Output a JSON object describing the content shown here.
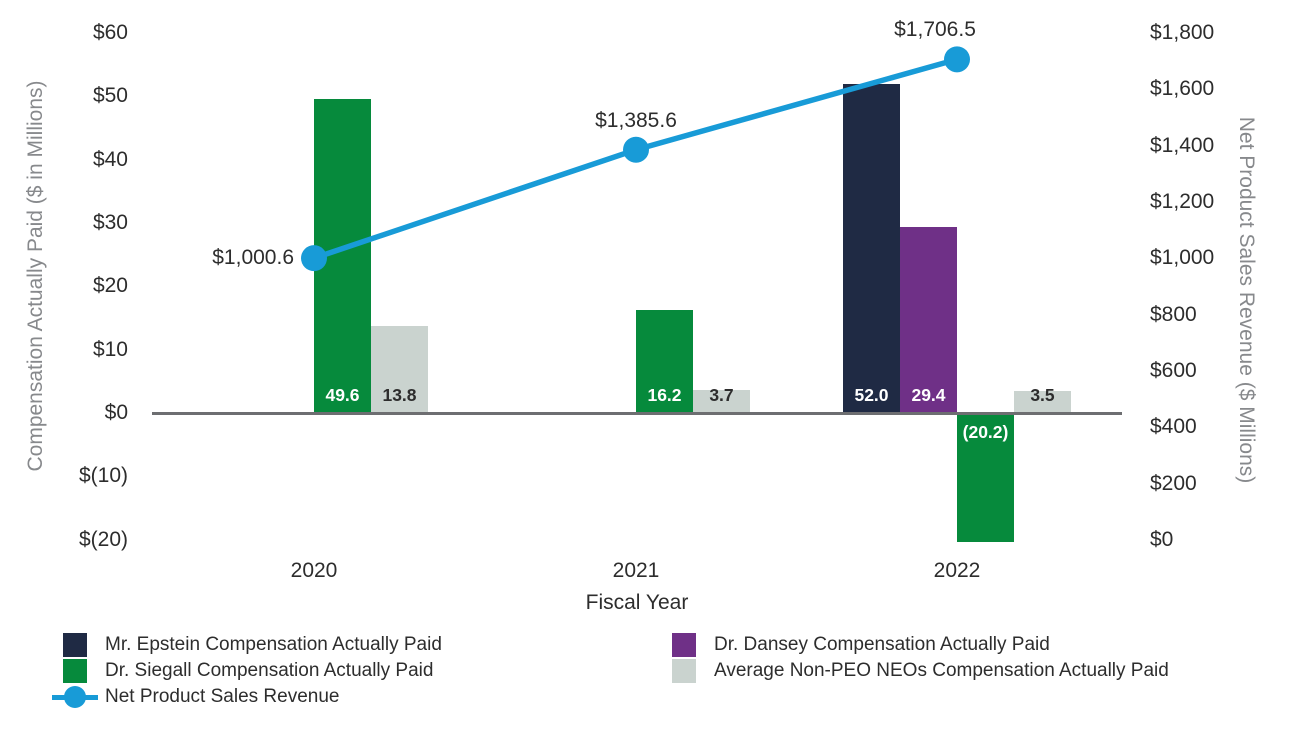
{
  "chart_data": {
    "type": "combo-bar-line",
    "background": "#ffffff",
    "grid": false,
    "categories": [
      "2020",
      "2021",
      "2022"
    ],
    "xlabel": "Fiscal Year",
    "left_axis": {
      "label": "Compensation Actually Paid ($ in Millions)",
      "tick_values": [
        60,
        50,
        40,
        30,
        20,
        10,
        0,
        -10,
        -20
      ],
      "tick_labels": [
        "$60",
        "$50",
        "$40",
        "$30",
        "$20",
        "$10",
        "$0",
        "$(10)",
        "$(20)"
      ],
      "range": [
        -20,
        60
      ]
    },
    "right_axis": {
      "label": "Net Product Sales Revenue ($ Millions)",
      "tick_values": [
        1800,
        1600,
        1400,
        1200,
        1000,
        800,
        600,
        400,
        200,
        0
      ],
      "tick_labels": [
        "$1,800",
        "$1,600",
        "$1,400",
        "$1,200",
        "$1,000",
        "$800",
        "$600",
        "$400",
        "$200",
        "$0"
      ],
      "range": [
        0,
        1800
      ]
    },
    "bar_series": [
      {
        "name": "Mr. Epstein Compensation Actually Paid",
        "color": "#1F2A44",
        "label_color": "#FFFFFF",
        "values": [
          null,
          null,
          52.0
        ],
        "value_labels": [
          null,
          null,
          "52.0"
        ]
      },
      {
        "name": "Dr. Dansey Compensation Actually Paid",
        "color": "#6F3087",
        "label_color": "#FFFFFF",
        "values": [
          null,
          null,
          29.4
        ],
        "value_labels": [
          null,
          null,
          "29.4"
        ]
      },
      {
        "name": "Dr. Siegall Compensation Actually Paid",
        "color": "#068A3C",
        "label_color": "#FFFFFF",
        "values": [
          49.6,
          16.2,
          -20.2
        ],
        "value_labels": [
          "49.6",
          "16.2",
          "(20.2)"
        ]
      },
      {
        "name": "Average Non-PEO NEOs Compensation Actually Paid",
        "color": "#CAD3CF",
        "label_color": "#2D2D2D",
        "values": [
          13.8,
          3.7,
          3.5
        ],
        "value_labels": [
          "13.8",
          "3.7",
          "3.5"
        ]
      }
    ],
    "line_series": {
      "name": "Net Product Sales Revenue",
      "color": "#189BD7",
      "axis": "right",
      "values": [
        1000.6,
        1385.6,
        1706.5
      ],
      "value_labels": [
        "$1,000.6",
        "$1,385.6",
        "$1,706.5"
      ],
      "label_positions": [
        "left",
        "above",
        "above-left"
      ]
    },
    "legend": {
      "position": "bottom",
      "columns": [
        [
          {
            "marker": "square",
            "color": "#1F2A44",
            "label": "Mr. Epstein Compensation Actually Paid"
          },
          {
            "marker": "square",
            "color": "#068A3C",
            "label": "Dr. Siegall Compensation Actually Paid"
          },
          {
            "marker": "line-dot",
            "color": "#189BD7",
            "label": "Net Product Sales Revenue"
          }
        ],
        [
          {
            "marker": "square",
            "color": "#6F3087",
            "label": "Dr. Dansey Compensation Actually Paid"
          },
          {
            "marker": "square",
            "color": "#CAD3CF",
            "label": "Average Non-PEO NEOs Compensation Actually Paid"
          }
        ]
      ]
    }
  }
}
